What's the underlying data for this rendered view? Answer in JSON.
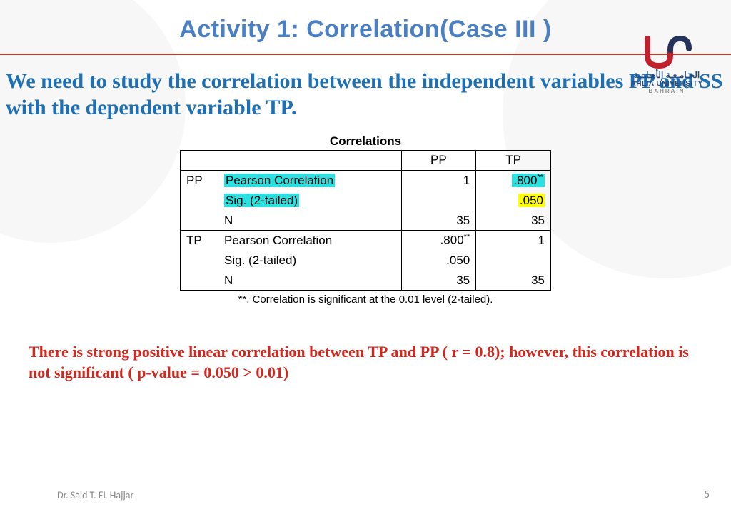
{
  "title": "Activity 1: Correlation(Case III )",
  "intro": "We need to study the correlation between the independent variables PP and SS with the dependent variable TP.",
  "logo": {
    "arabic": "الجـامـعـة الأهـلـيـة",
    "english": "AHLIA UNIVERSITY",
    "sub": "BAHRAIN"
  },
  "table": {
    "caption": "Correlations",
    "col_headers": [
      "PP",
      "TP"
    ],
    "groups": [
      {
        "var": "PP",
        "rows": [
          {
            "stat": "Pearson Correlation",
            "stat_highlight": "cyan",
            "cells": [
              {
                "text": "1",
                "highlight": null,
                "sup": ""
              },
              {
                "text": ".800",
                "highlight": "cyan",
                "sup": "**"
              }
            ]
          },
          {
            "stat": "Sig. (2-tailed)",
            "stat_highlight": "cyan",
            "cells": [
              {
                "text": "",
                "highlight": null,
                "sup": ""
              },
              {
                "text": ".050",
                "highlight": "yellow",
                "sup": ""
              }
            ]
          },
          {
            "stat": "N",
            "stat_highlight": null,
            "cells": [
              {
                "text": "35",
                "highlight": null,
                "sup": ""
              },
              {
                "text": "35",
                "highlight": null,
                "sup": ""
              }
            ]
          }
        ]
      },
      {
        "var": "TP",
        "rows": [
          {
            "stat": "Pearson Correlation",
            "stat_highlight": null,
            "cells": [
              {
                "text": ".800",
                "highlight": null,
                "sup": "**"
              },
              {
                "text": "1",
                "highlight": null,
                "sup": ""
              }
            ]
          },
          {
            "stat": "Sig. (2-tailed)",
            "stat_highlight": null,
            "cells": [
              {
                "text": ".050",
                "highlight": null,
                "sup": ""
              },
              {
                "text": "",
                "highlight": null,
                "sup": ""
              }
            ]
          },
          {
            "stat": "N",
            "stat_highlight": null,
            "cells": [
              {
                "text": "35",
                "highlight": null,
                "sup": ""
              },
              {
                "text": "35",
                "highlight": null,
                "sup": ""
              }
            ]
          }
        ]
      }
    ],
    "footnote": "**. Correlation is significant at the 0.01 level (2-tailed)."
  },
  "conclusion": "There is strong positive linear correlation between TP and PP ( r = 0.8); however, this correlation is not significant ( p-value = 0.050 > 0.01)",
  "author": "Dr. Said T. EL Hajjar",
  "page": "5",
  "colors": {
    "title": "#4a7fc4",
    "divider": "#c0392b",
    "intro": "#1f6fb4",
    "conclusion": "#d5261e",
    "highlight_cyan": "#2be0e0",
    "highlight_yellow": "#ffff00",
    "muted": "#8a8a8a",
    "bg_shape": "#f7f7f7"
  }
}
